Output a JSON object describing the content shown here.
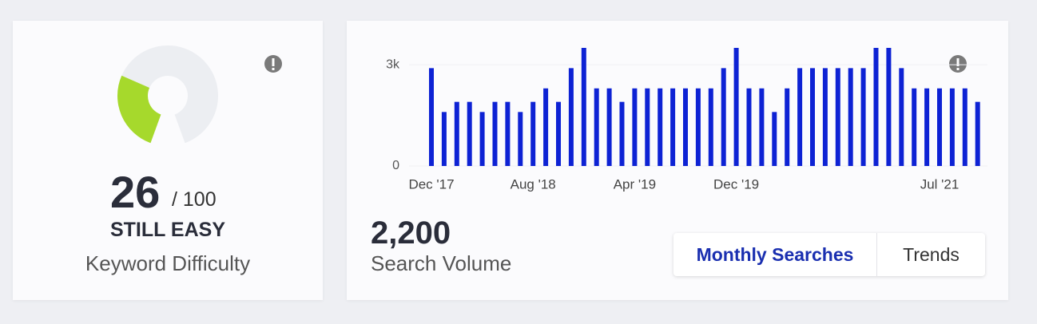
{
  "difficulty": {
    "score": 26,
    "max": 100,
    "out_of": "/ 100",
    "status": "STILL EASY",
    "label": "Keyword Difficulty",
    "color": "#a6d92c"
  },
  "volume": {
    "value": {
      "value": 2200,
      "label": "2,200"
    },
    "label": "Search Volume"
  },
  "buttons": [
    "Monthly Searches",
    "Trends"
  ],
  "chart_data": {
    "type": "bar",
    "color": "#0d22d4",
    "categories": [
      "Dec '17",
      null,
      null,
      null,
      null,
      null,
      null,
      null,
      "Aug '18",
      null,
      null,
      null,
      null,
      null,
      null,
      null,
      "Apr '19",
      null,
      null,
      null,
      null,
      null,
      null,
      null,
      "Dec '19",
      null,
      null,
      null,
      null,
      null,
      null,
      null,
      null,
      null,
      null,
      null,
      null,
      null,
      null,
      null,
      "Jul '21",
      null,
      null,
      null
    ],
    "values": [
      2900,
      1600,
      1900,
      1900,
      1600,
      1900,
      1900,
      1600,
      1900,
      2300,
      1900,
      2900,
      3500,
      2300,
      2300,
      1900,
      2300,
      2300,
      2300,
      2300,
      2300,
      2300,
      2300,
      2900,
      3500,
      2300,
      2300,
      1600,
      2300,
      2900,
      2900,
      2900,
      2900,
      2900,
      2900,
      3500,
      3500,
      2900,
      2300,
      2300,
      2300,
      2300,
      2300,
      1900
    ],
    "ylim": [
      0,
      3500
    ],
    "yticks": [
      0,
      {
        "value": 3000,
        "label": "3k"
      }
    ],
    "grid": true
  }
}
